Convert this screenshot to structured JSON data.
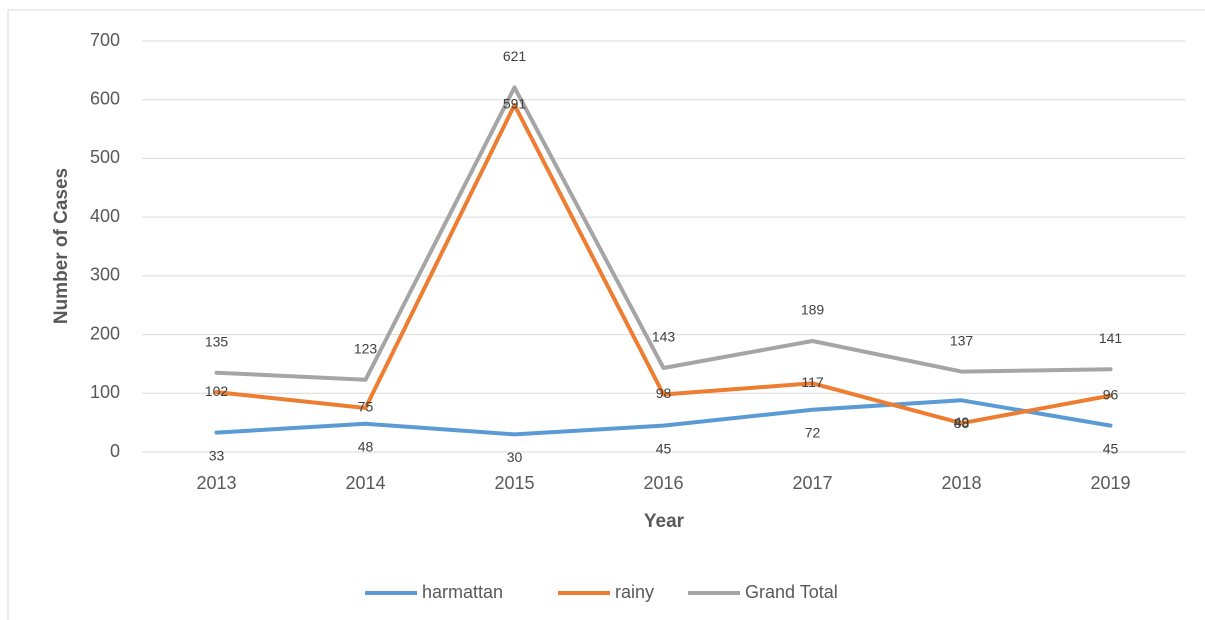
{
  "chart_data": {
    "type": "line",
    "x_label": "Year",
    "y_label": "Number of Cases",
    "categories": [
      "2013",
      "2014",
      "2015",
      "2016",
      "2017",
      "2018",
      "2019"
    ],
    "series": [
      {
        "name": "harmattan",
        "color": "#5b9bd5",
        "values": [
          33,
          48,
          30,
          45,
          72,
          88,
          45
        ]
      },
      {
        "name": "rainy",
        "color": "#ed7d31",
        "values": [
          102,
          75,
          591,
          98,
          117,
          49,
          96
        ]
      },
      {
        "name": "Grand Total",
        "color": "#a5a5a5",
        "values": [
          135,
          123,
          621,
          143,
          189,
          137,
          141
        ]
      }
    ],
    "ylim": [
      0,
      700
    ],
    "yticks": [
      0,
      100,
      200,
      300,
      400,
      500,
      600,
      700
    ],
    "grid": true,
    "legend": "bottom"
  }
}
